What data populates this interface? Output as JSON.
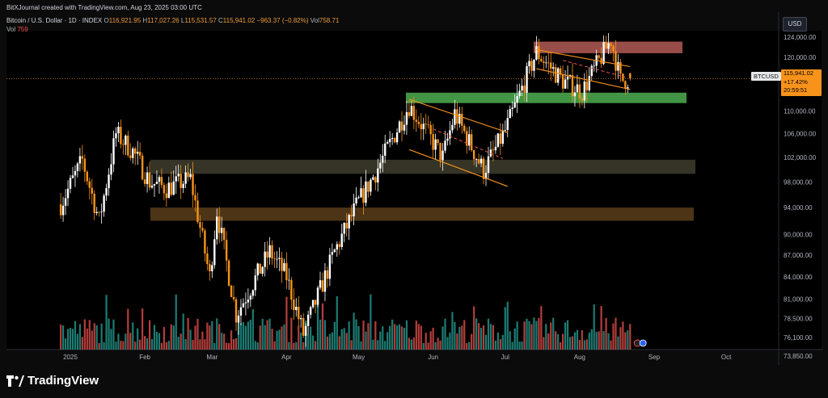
{
  "header": {
    "credit": "BitXJournal created with TradingView.com, Aug 23, 2025 03:00 UTC",
    "instrument": "Bitcoin / U.S. Dollar · 1D · INDEX",
    "open_label": "O",
    "open": "116,921.95",
    "high_label": "H",
    "high": "117,027.26",
    "low_label": "L",
    "low": "115,531.57",
    "close_label": "C",
    "close": "115,941.02",
    "change": "−963.37 (−0.82%)",
    "vol_label": "Vol",
    "vol": "758.71",
    "vol_ma_label": "Vol",
    "vol_ma": "759"
  },
  "currency": "USD",
  "price_tag": {
    "symbol": "BTCUSD",
    "price": "115,941.02",
    "change": "+17.42%",
    "countdown": "20:59:51"
  },
  "brand": {
    "logo_text": "TradingView",
    "icon": "tradingview-logo-icon"
  },
  "colors": {
    "up": "#ffffff",
    "down": "#f7931a",
    "vol_up": "#26a69a",
    "vol_down": "#ef5350",
    "accent": "#f7931a"
  },
  "chart_data": {
    "type": "candlestick",
    "symbol": "BTCUSD",
    "interval": "1D",
    "y_ticks": [
      "124,000.00",
      "120,000.00",
      "116,000.00",
      "110,000.00",
      "106,000.00",
      "102,000.00",
      "98,000.00",
      "94,000.00",
      "90,000.00",
      "87,000.00",
      "84,000.00",
      "81,000.00",
      "78,500.00",
      "76,100.00",
      "73,850.00"
    ],
    "x_ticks": [
      "2025",
      "Feb",
      "Mar",
      "Apr",
      "May",
      "Jun",
      "Jul",
      "Aug",
      "Sep",
      "Oct"
    ],
    "last_price": 115941.02,
    "scale": "log",
    "zones": [
      {
        "low": 120800,
        "high": 123100,
        "color": "#b25a55"
      },
      {
        "low": 111400,
        "high": 113300,
        "color": "#4caf50"
      },
      {
        "low": 99300,
        "high": 101600,
        "color": "#3b3a2a"
      },
      {
        "low": 92000,
        "high": 94000,
        "color": "#5a3d1a"
      }
    ],
    "channels": [
      {
        "from": [
          "2025-05-22",
          112100
        ],
        "to": [
          "2025-07-02",
          106200
        ],
        "color": "#f7931a"
      },
      {
        "from": [
          "2025-05-22",
          103300
        ],
        "to": [
          "2025-07-02",
          97300
        ],
        "color": "#f7931a"
      },
      {
        "from": [
          "2025-07-14",
          121500
        ],
        "to": [
          "2025-08-22",
          118200
        ],
        "color": "#f7931a"
      },
      {
        "from": [
          "2025-07-14",
          117800
        ],
        "to": [
          "2025-08-22",
          113900
        ],
        "color": "#f7931a"
      }
    ],
    "path": [
      [
        "2024-12-28",
        94500
      ],
      [
        "2025-01-06",
        101500
      ],
      [
        "2025-01-13",
        92000
      ],
      [
        "2025-01-20",
        106000
      ],
      [
        "2025-01-27",
        103000
      ],
      [
        "2025-02-03",
        98000
      ],
      [
        "2025-02-10",
        97000
      ],
      [
        "2025-02-20",
        98500
      ],
      [
        "2025-02-28",
        84000
      ],
      [
        "2025-03-03",
        93500
      ],
      [
        "2025-03-11",
        79000
      ],
      [
        "2025-03-25",
        87500
      ],
      [
        "2025-04-01",
        84000
      ],
      [
        "2025-04-08",
        76500
      ],
      [
        "2025-04-21",
        87500
      ],
      [
        "2025-04-30",
        94200
      ],
      [
        "2025-05-08",
        99500
      ],
      [
        "2025-05-22",
        111000
      ],
      [
        "2025-06-05",
        102000
      ],
      [
        "2025-06-10",
        109500
      ],
      [
        "2025-06-22",
        99800
      ],
      [
        "2025-07-01",
        106500
      ],
      [
        "2025-07-14",
        121000
      ],
      [
        "2025-07-25",
        115500
      ],
      [
        "2025-08-02",
        113500
      ],
      [
        "2025-08-14",
        123500
      ],
      [
        "2025-08-18",
        115500
      ],
      [
        "2025-08-22",
        115941
      ]
    ]
  }
}
